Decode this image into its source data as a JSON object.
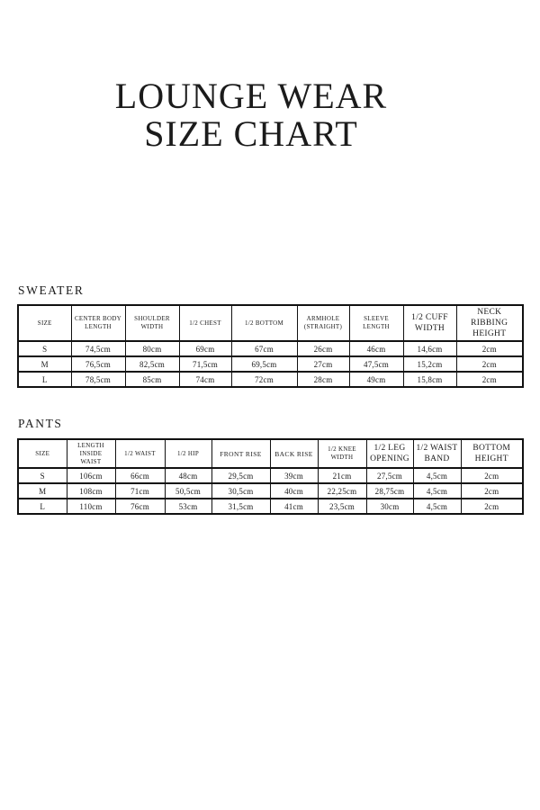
{
  "title": {
    "line1": "LOUNGE WEAR",
    "line2": "SIZE CHART"
  },
  "colors": {
    "text": "#1b1b1b",
    "table_border": "#111111",
    "background": "#ffffff"
  },
  "sweater": {
    "heading": "SWEATER",
    "columns": [
      "SIZE",
      "CENTER BODY LENGTH",
      "SHOULDER WIDTH",
      "1/2 CHEST",
      "1/2 BOTTOM",
      "ARMHOLE (STRAIGHT)",
      "SLEEVE LENGTH",
      "1/2 CUFF WIDTH",
      "NECK RIBBING HEIGHT"
    ],
    "rows": [
      [
        "S",
        "74,5cm",
        "80cm",
        "69cm",
        "67cm",
        "26cm",
        "46cm",
        "14,6cm",
        "2cm"
      ],
      [
        "M",
        "76,5cm",
        "82,5cm",
        "71,5cm",
        "69,5cm",
        "27cm",
        "47,5cm",
        "15,2cm",
        "2cm"
      ],
      [
        "L",
        "78,5cm",
        "85cm",
        "74cm",
        "72cm",
        "28cm",
        "49cm",
        "15,8cm",
        "2cm"
      ]
    ]
  },
  "pants": {
    "heading": "PANTS",
    "columns": [
      "SIZE",
      "LENGTH INSIDE WAIST",
      "1/2 WAIST",
      "1/2 HIP",
      "FRONT RISE",
      "BACK RISE",
      "1/2 KNEE WIDTH",
      "1/2 LEG OPENING",
      "1/2 WAIST BAND",
      "BOTTOM HEIGHT"
    ],
    "rows": [
      [
        "S",
        "106cm",
        "66cm",
        "48cm",
        "29,5cm",
        "39cm",
        "21cm",
        "27,5cm",
        "4,5cm",
        "2cm"
      ],
      [
        "M",
        "108cm",
        "71cm",
        "50,5cm",
        "30,5cm",
        "40cm",
        "22,25cm",
        "28,75cm",
        "4,5cm",
        "2cm"
      ],
      [
        "L",
        "110cm",
        "76cm",
        "53cm",
        "31,5cm",
        "41cm",
        "23,5cm",
        "30cm",
        "4,5cm",
        "2cm"
      ]
    ]
  }
}
